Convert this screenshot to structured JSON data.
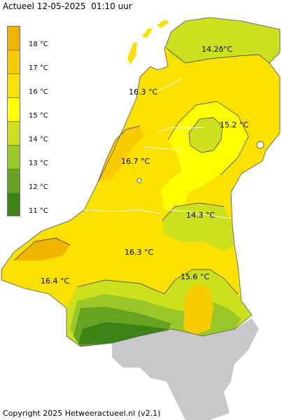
{
  "header": {
    "title": "Actueel 12-05-2025  01:10 uur"
  },
  "legend": {
    "items": [
      {
        "label": "18 °C",
        "color": "#f0b400"
      },
      {
        "label": "17 °C",
        "color": "#f8cc00"
      },
      {
        "label": "16 °C",
        "color": "#fae100"
      },
      {
        "label": "15 °C",
        "color": "#ffff00"
      },
      {
        "label": "14 °C",
        "color": "#cce01e"
      },
      {
        "label": "13 °C",
        "color": "#99c828"
      },
      {
        "label": "12 °C",
        "color": "#66a320"
      },
      {
        "label": "11 °C",
        "color": "#3c8214"
      }
    ]
  },
  "map": {
    "stations": [
      {
        "label": "14.2ð°C"
      },
      {
        "label": "16.3 °C"
      },
      {
        "label": "15.2 °C"
      },
      {
        "label": "16.7 °C"
      },
      {
        "label": "14.3 °C"
      },
      {
        "label": "16.3 °C"
      },
      {
        "label": "16.4 °C"
      },
      {
        "label": "15.6 °C"
      }
    ],
    "outside_color": "#c8c8c8"
  },
  "footer": {
    "copyright": "Copyright 2025 Hetweeractueel.nl (v2.1)"
  }
}
